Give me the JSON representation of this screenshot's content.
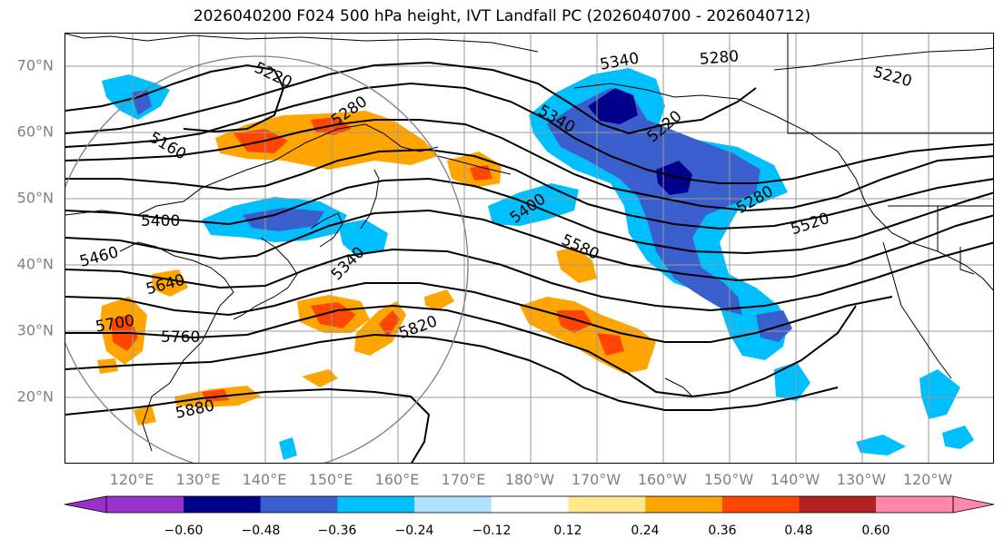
{
  "title": "2026040200 F024 500 hPa height, IVT Landfall PC (2026040700 - 2026040712)",
  "lat_labels": [
    "70°N",
    "60°N",
    "50°N",
    "40°N",
    "30°N",
    "20°N"
  ],
  "lon_labels": [
    "120°E",
    "130°E",
    "140°E",
    "150°E",
    "160°E",
    "170°E",
    "180°W",
    "170°W",
    "160°W",
    "150°W",
    "140°W",
    "130°W",
    "120°W"
  ],
  "contour_labels": [
    "5220",
    "5280",
    "5340",
    "5160",
    "5400",
    "5460",
    "5520",
    "5580",
    "5640",
    "5700",
    "5760",
    "5820",
    "5880"
  ],
  "colorbar": {
    "ticks": [
      "−0.60",
      "−0.48",
      "−0.36",
      "−0.24",
      "−0.12",
      "0.12",
      "0.24",
      "0.36",
      "0.48",
      "0.60"
    ],
    "colors": [
      "#9932cc",
      "#00008b",
      "#3a5fcd",
      "#00bfff",
      "#b0e2ff",
      "#ffffff",
      "#ffe98c",
      "#ffa500",
      "#ff4500",
      "#b22222",
      "#ff88aa"
    ]
  }
}
